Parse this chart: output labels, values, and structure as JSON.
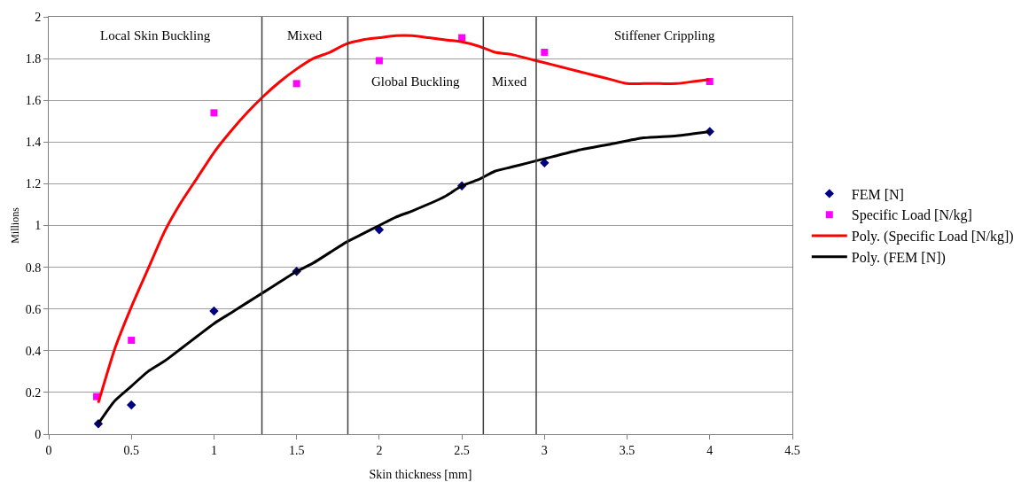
{
  "chart_data": {
    "type": "scatter",
    "xlabel": "Skin thickness [mm]",
    "ylabel": "Millions",
    "xlim": [
      0,
      4.5
    ],
    "xticks": [
      0,
      0.5,
      1,
      1.5,
      2,
      2.5,
      3,
      3.5,
      4,
      4.5
    ],
    "ylim": [
      0,
      2
    ],
    "yticks": [
      0,
      0.2,
      0.4,
      0.6,
      0.8,
      1,
      1.2,
      1.4,
      1.6,
      1.8,
      2
    ],
    "grid": "y",
    "legend": "right",
    "series": [
      {
        "name": "FEM [N]",
        "color": "#000080",
        "marker": "diamond",
        "x": [
          0.3,
          0.5,
          1,
          1.5,
          2,
          2.5,
          3,
          4
        ],
        "values": [
          0.05,
          0.14,
          0.59,
          0.78,
          0.98,
          1.19,
          1.3,
          1.45
        ]
      },
      {
        "name": "Specific Load [N/kg]",
        "color": "#ff00ff",
        "marker": "square",
        "x": [
          0.29,
          0.5,
          1,
          1.5,
          2,
          2.5,
          3,
          4
        ],
        "values": [
          0.18,
          0.45,
          1.54,
          1.68,
          1.79,
          1.9,
          1.83,
          1.69
        ]
      },
      {
        "name": "Poly. (Specific Load [N/kg])",
        "color": "#ff0000",
        "type": "line",
        "x": [
          0.3,
          0.4,
          0.5,
          0.6,
          0.7,
          0.8,
          0.9,
          1,
          1.1,
          1.2,
          1.3,
          1.4,
          1.5,
          1.6,
          1.7,
          1.8,
          1.9,
          2,
          2.1,
          2.2,
          2.3,
          2.4,
          2.5,
          2.6,
          2.7,
          2.8,
          2.9,
          3,
          3.1,
          3.2,
          3.3,
          3.4,
          3.5,
          3.6,
          3.7,
          3.8,
          3.9,
          4
        ],
        "values": [
          0.15,
          0.41,
          0.61,
          0.79,
          0.97,
          1.11,
          1.23,
          1.35,
          1.45,
          1.54,
          1.62,
          1.69,
          1.75,
          1.8,
          1.83,
          1.87,
          1.89,
          1.9,
          1.91,
          1.91,
          1.9,
          1.89,
          1.88,
          1.86,
          1.83,
          1.82,
          1.8,
          1.78,
          1.76,
          1.74,
          1.72,
          1.7,
          1.68,
          1.68,
          1.68,
          1.68,
          1.69,
          1.7
        ]
      },
      {
        "name": "Poly. (FEM [N])",
        "color": "#000000",
        "type": "line",
        "x": [
          0.3,
          0.4,
          0.5,
          0.6,
          0.7,
          0.8,
          0.9,
          1,
          1.1,
          1.2,
          1.3,
          1.4,
          1.5,
          1.6,
          1.7,
          1.8,
          1.9,
          2,
          2.1,
          2.2,
          2.4,
          2.5,
          2.6,
          2.7,
          2.8,
          2.9,
          3,
          3.2,
          3.4,
          3.6,
          3.8,
          4
        ],
        "values": [
          0.05,
          0.16,
          0.23,
          0.3,
          0.35,
          0.41,
          0.47,
          0.53,
          0.58,
          0.63,
          0.68,
          0.73,
          0.78,
          0.82,
          0.87,
          0.92,
          0.96,
          1,
          1.04,
          1.07,
          1.14,
          1.19,
          1.22,
          1.26,
          1.28,
          1.3,
          1.32,
          1.36,
          1.39,
          1.42,
          1.43,
          1.45
        ]
      }
    ],
    "ref_lines": [
      {
        "axis": "x",
        "value": 1.29,
        "color": "#404040"
      },
      {
        "axis": "x",
        "value": 1.81,
        "color": "#404040"
      },
      {
        "axis": "x",
        "value": 2.63,
        "color": "#404040"
      },
      {
        "axis": "x",
        "value": 2.95,
        "color": "#404040"
      }
    ],
    "annotations": [
      "Local Skin Buckling",
      "Mixed",
      "Global Buckling",
      "Mixed",
      "Stiffener Crippling"
    ]
  }
}
